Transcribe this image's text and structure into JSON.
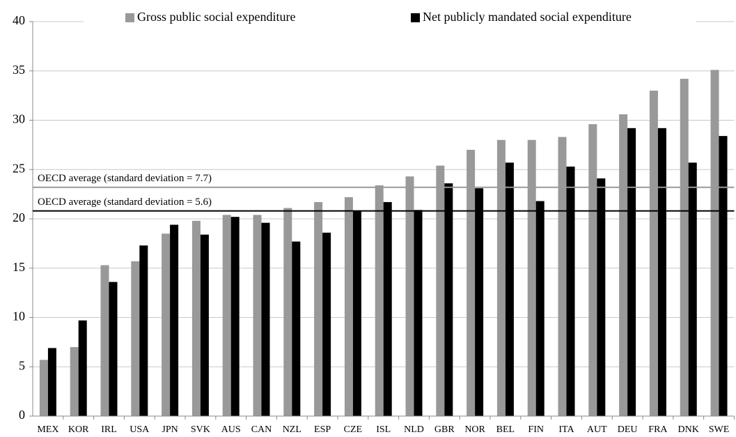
{
  "chart_data": {
    "type": "bar",
    "categories": [
      "MEX",
      "KOR",
      "IRL",
      "USA",
      "JPN",
      "SVK",
      "AUS",
      "CAN",
      "NZL",
      "ESP",
      "CZE",
      "ISL",
      "NLD",
      "GBR",
      "NOR",
      "BEL",
      "FIN",
      "ITA",
      "AUT",
      "DEU",
      "FRA",
      "DNK",
      "SWE"
    ],
    "series": [
      {
        "name": "Gross public social expenditure",
        "color": "#999999",
        "values": [
          5.7,
          7.0,
          15.3,
          15.7,
          18.5,
          19.8,
          20.4,
          20.4,
          21.1,
          21.7,
          22.2,
          23.4,
          24.3,
          25.4,
          27.0,
          28.0,
          28.0,
          28.3,
          29.6,
          30.6,
          33.0,
          34.2,
          35.1
        ]
      },
      {
        "name": "Net publicly mandated social expenditure",
        "color": "#000000",
        "values": [
          6.9,
          9.7,
          13.6,
          17.3,
          19.4,
          18.4,
          20.2,
          19.6,
          17.7,
          18.6,
          20.8,
          21.7,
          20.9,
          23.6,
          23.1,
          25.7,
          21.8,
          25.3,
          24.1,
          29.2,
          29.2,
          25.7,
          28.4
        ]
      }
    ],
    "reference_lines": [
      {
        "label": "OECD average (standard deviation = 7.7)",
        "value": 23.2,
        "color": "#999999"
      },
      {
        "label": "OECD average (standard deviation = 5.6)",
        "value": 20.8,
        "color": "#000000"
      }
    ],
    "ylim": [
      0,
      40
    ],
    "yticks": [
      0,
      5,
      10,
      15,
      20,
      25,
      30,
      35,
      40
    ],
    "grid": true,
    "legend": "top"
  }
}
